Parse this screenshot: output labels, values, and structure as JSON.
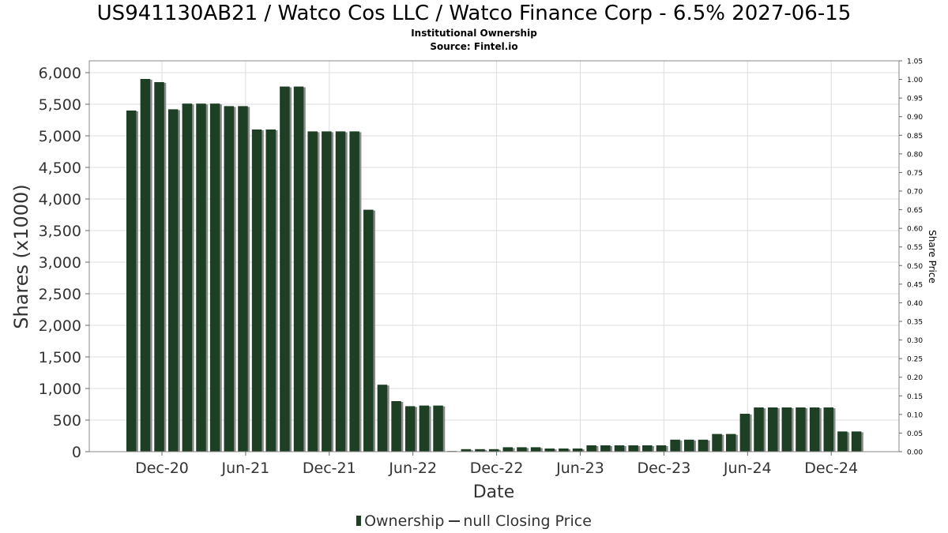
{
  "title": "US941130AB21 / Watco Cos LLC / Watco Finance Corp - 6.5% 2027-06-15",
  "subtitle": "Institutional Ownership",
  "source": "Source: Fintel.io",
  "legend": {
    "ownership": "Ownership",
    "closing": "null Closing Price"
  },
  "colors": {
    "bar": "#1d3f24",
    "bar_shadow": "#8a8a8a",
    "grid": "#dddddd",
    "frame": "#888888"
  },
  "chart_data": {
    "type": "bar",
    "title": "US941130AB21 / Watco Cos LLC / Watco Finance Corp - 6.5% 2027-06-15",
    "xlabel": "Date",
    "ylabel": "Shares (x1000)",
    "y2label": "Share Price",
    "ylim": [
      0,
      6200
    ],
    "y2lim": [
      0,
      1.05
    ],
    "yticks": [
      "0",
      "500",
      "1,000",
      "1,500",
      "2,000",
      "2,500",
      "3,000",
      "3,500",
      "4,000",
      "4,500",
      "5,000",
      "5,500",
      "6,000"
    ],
    "y2ticks": [
      "0.00",
      "0.05",
      "0.10",
      "0.15",
      "0.20",
      "0.25",
      "0.30",
      "0.35",
      "0.40",
      "0.45",
      "0.50",
      "0.55",
      "0.60",
      "0.65",
      "0.70",
      "0.75",
      "0.80",
      "0.85",
      "0.90",
      "0.95",
      "1.00",
      "1.05"
    ],
    "xticks": [
      "Dec-20",
      "Jun-21",
      "Dec-21",
      "Jun-22",
      "Dec-22",
      "Jun-23",
      "Dec-23",
      "Jun-24",
      "Dec-24"
    ],
    "grid": true,
    "legend_position": "bottom",
    "series": [
      {
        "name": "Ownership",
        "values": [
          5400,
          5900,
          5850,
          5420,
          5510,
          5510,
          5510,
          5470,
          5470,
          5100,
          5100,
          5780,
          5780,
          5070,
          5070,
          5070,
          5070,
          3830,
          1060,
          800,
          720,
          730,
          730,
          10,
          40,
          40,
          40,
          70,
          70,
          70,
          50,
          50,
          50,
          100,
          100,
          100,
          100,
          100,
          100,
          190,
          190,
          190,
          280,
          280,
          600,
          700,
          700,
          700,
          700,
          700,
          700,
          320,
          320
        ]
      },
      {
        "name": "null Closing Price",
        "values": []
      }
    ]
  }
}
